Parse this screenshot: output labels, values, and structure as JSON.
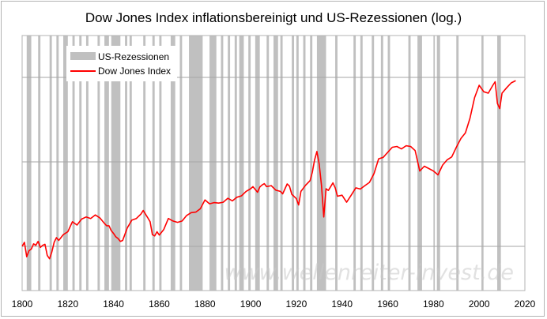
{
  "chart_data": {
    "type": "line",
    "title": "Dow Jones Index inflationsbereinigt und US-Rezessionen (log.)",
    "xlim": [
      1800,
      2020
    ],
    "x_ticks": [
      1800,
      1820,
      1840,
      1860,
      1880,
      1900,
      1920,
      1940,
      1960,
      1980,
      2000,
      2020
    ],
    "y_scale": "log",
    "y_tick_labels_shown": false,
    "grid": {
      "horizontal": true,
      "vertical": false
    },
    "legend": {
      "placement": "top-left",
      "entries": [
        {
          "label": "US-Rezessionen",
          "color": "#c0c0c0",
          "kind": "band"
        },
        {
          "label": "Dow Jones Index",
          "color": "#ff0000",
          "kind": "line"
        }
      ]
    },
    "watermark": "www.wellenreiter-invest.de",
    "recessions": [
      [
        1802,
        1804
      ],
      [
        1807,
        1808
      ],
      [
        1812,
        1813
      ],
      [
        1815,
        1816
      ],
      [
        1818,
        1820
      ],
      [
        1822,
        1823
      ],
      [
        1825,
        1826
      ],
      [
        1828,
        1829
      ],
      [
        1833,
        1834
      ],
      [
        1836,
        1838
      ],
      [
        1839,
        1843
      ],
      [
        1845,
        1846
      ],
      [
        1847,
        1848
      ],
      [
        1853,
        1854
      ],
      [
        1857,
        1858
      ],
      [
        1860,
        1861
      ],
      [
        1865,
        1867
      ],
      [
        1869,
        1870
      ],
      [
        1873,
        1879
      ],
      [
        1882,
        1885
      ],
      [
        1887,
        1888
      ],
      [
        1890,
        1891
      ],
      [
        1893,
        1894
      ],
      [
        1895,
        1897
      ],
      [
        1899,
        1900
      ],
      [
        1902,
        1904
      ],
      [
        1907,
        1908
      ],
      [
        1910,
        1912
      ],
      [
        1913,
        1914
      ],
      [
        1918,
        1919
      ],
      [
        1920,
        1921
      ],
      [
        1923,
        1924
      ],
      [
        1926,
        1927
      ],
      [
        1929,
        1933
      ],
      [
        1937,
        1938
      ],
      [
        1945,
        1946
      ],
      [
        1948,
        1949
      ],
      [
        1953,
        1954
      ],
      [
        1957,
        1958
      ],
      [
        1960,
        1961
      ],
      [
        1969,
        1970
      ],
      [
        1973,
        1975
      ],
      [
        1980,
        1980.6
      ],
      [
        1981.5,
        1982.9
      ],
      [
        1990,
        1991
      ],
      [
        2001,
        2001.9
      ],
      [
        2007.9,
        2009.5
      ]
    ],
    "series": [
      {
        "name": "Dow Jones Index",
        "color": "#ff0000",
        "x": [
          1800,
          1801,
          1802,
          1803,
          1804,
          1805,
          1806,
          1807,
          1808,
          1809,
          1810,
          1811,
          1812,
          1813,
          1814,
          1815,
          1816,
          1818,
          1820,
          1822,
          1824,
          1826,
          1828,
          1830,
          1832,
          1834,
          1836,
          1837,
          1838,
          1839,
          1840,
          1841,
          1842,
          1843,
          1844,
          1846,
          1848,
          1850,
          1852,
          1853,
          1855,
          1856,
          1857,
          1858,
          1859,
          1860,
          1862,
          1864,
          1866,
          1868,
          1870,
          1872,
          1874,
          1876,
          1878,
          1880,
          1882,
          1884,
          1886,
          1888,
          1890,
          1892,
          1894,
          1896,
          1898,
          1900,
          1901,
          1903,
          1904,
          1905,
          1906,
          1907,
          1909,
          1911,
          1913,
          1914,
          1916,
          1917,
          1918,
          1920,
          1921,
          1922,
          1924,
          1926,
          1927,
          1928,
          1929,
          1930,
          1931,
          1932,
          1933,
          1934,
          1936,
          1937,
          1938,
          1940,
          1942,
          1944,
          1946,
          1948,
          1950,
          1952,
          1954,
          1956,
          1958,
          1960,
          1962,
          1964,
          1966,
          1968,
          1970,
          1972,
          1974,
          1976,
          1978,
          1980,
          1982,
          1984,
          1986,
          1988,
          1990,
          1992,
          1994,
          1996,
          1998,
          2000,
          2002,
          2004,
          2006,
          2007,
          2008,
          2009,
          2010,
          2012,
          2014,
          2016
        ],
        "values": [
          100,
          108,
          82,
          92,
          95,
          105,
          102,
          110,
          98,
          102,
          104,
          84,
          79,
          90,
          108,
          118,
          112,
          125,
          132,
          160,
          150,
          168,
          175,
          170,
          182,
          172,
          155,
          148,
          148,
          135,
          128,
          120,
          116,
          110,
          112,
          142,
          165,
          170,
          185,
          198,
          172,
          160,
          125,
          122,
          132,
          124,
          138,
          170,
          162,
          158,
          162,
          180,
          190,
          192,
          205,
          242,
          225,
          230,
          228,
          232,
          250,
          238,
          255,
          262,
          285,
          300,
          312,
          280,
          310,
          322,
          330,
          312,
          318,
          292,
          285,
          272,
          328,
          315,
          270,
          248,
          220,
          285,
          320,
          350,
          410,
          520,
          610,
          480,
          320,
          175,
          300,
          290,
          335,
          305,
          260,
          265,
          232,
          265,
          305,
          298,
          318,
          338,
          400,
          530,
          545,
          600,
          660,
          670,
          640,
          680,
          670,
          620,
          420,
          460,
          440,
          420,
          390,
          470,
          520,
          550,
          660,
          780,
          870,
          1150,
          1700,
          2150,
          1900,
          1850,
          2150,
          2300,
          1520,
          1380,
          1850,
          2050,
          2250,
          2350
        ]
      }
    ]
  }
}
